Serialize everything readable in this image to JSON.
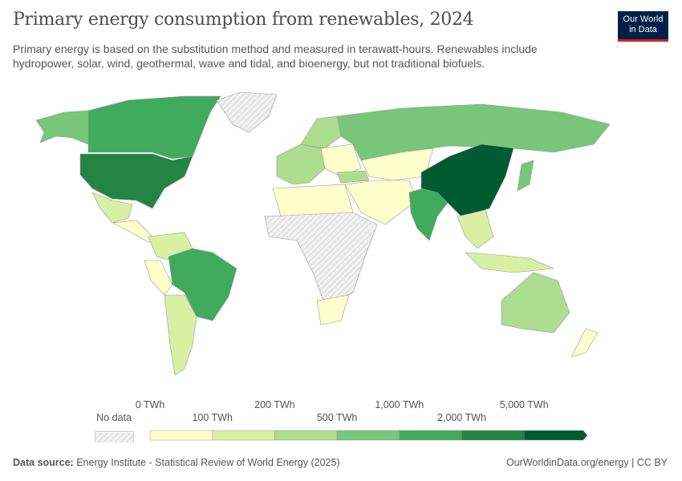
{
  "header": {
    "title": "Primary energy consumption from renewables, 2024",
    "subtitle": "Primary energy is based on the substitution method and measured in terawatt-hours. Renewables include hydropower, solar, wind, geothermal, wave and tidal, and bioenergy, but not traditional biofuels.",
    "logo": "Our World in Data"
  },
  "legend": {
    "no_data": "No data",
    "ticks": [
      "0 TWh",
      "100 TWh",
      "200 TWh",
      "500 TWh",
      "1,000 TWh",
      "2,000 TWh",
      "5,000 TWh"
    ],
    "colors": [
      "#ffffcc",
      "#d9f0a3",
      "#addd8e",
      "#78c679",
      "#41ab5d",
      "#238443",
      "#005a32"
    ],
    "no_data_color": "#e6e6e6"
  },
  "map_data": {
    "type": "choropleth",
    "unit": "TWh",
    "year": 2024,
    "regions": [
      {
        "name": "United States",
        "bin": 5
      },
      {
        "name": "Canada",
        "bin": 4
      },
      {
        "name": "Alaska",
        "bin": 3
      },
      {
        "name": "Greenland",
        "bin": -1
      },
      {
        "name": "Mexico",
        "bin": 1
      },
      {
        "name": "Central America",
        "bin": 0
      },
      {
        "name": "Colombia/Venezuela",
        "bin": 1
      },
      {
        "name": "Peru/Ecuador",
        "bin": 0
      },
      {
        "name": "Brazil",
        "bin": 4
      },
      {
        "name": "Argentina/Chile",
        "bin": 1
      },
      {
        "name": "Russia",
        "bin": 3
      },
      {
        "name": "Europe West",
        "bin": 2
      },
      {
        "name": "Scandinavia",
        "bin": 2
      },
      {
        "name": "Eastern Europe",
        "bin": 0
      },
      {
        "name": "Turkey",
        "bin": 2
      },
      {
        "name": "Kazakhstan/Central Asia",
        "bin": 0
      },
      {
        "name": "Middle East",
        "bin": 0
      },
      {
        "name": "North Africa",
        "bin": 0
      },
      {
        "name": "Sub-Saharan Africa",
        "bin": -1
      },
      {
        "name": "South Africa",
        "bin": 0
      },
      {
        "name": "India",
        "bin": 4
      },
      {
        "name": "China",
        "bin": 6
      },
      {
        "name": "Japan",
        "bin": 3
      },
      {
        "name": "Southeast Asia",
        "bin": 1
      },
      {
        "name": "Indonesia",
        "bin": 1
      },
      {
        "name": "Australia",
        "bin": 2
      },
      {
        "name": "New Zealand",
        "bin": 0
      }
    ]
  },
  "footer": {
    "source_label": "Data source:",
    "source": "Energy Institute - Statistical Review of World Energy (2025)",
    "url": "OurWorldinData.org/energy | CC BY"
  }
}
